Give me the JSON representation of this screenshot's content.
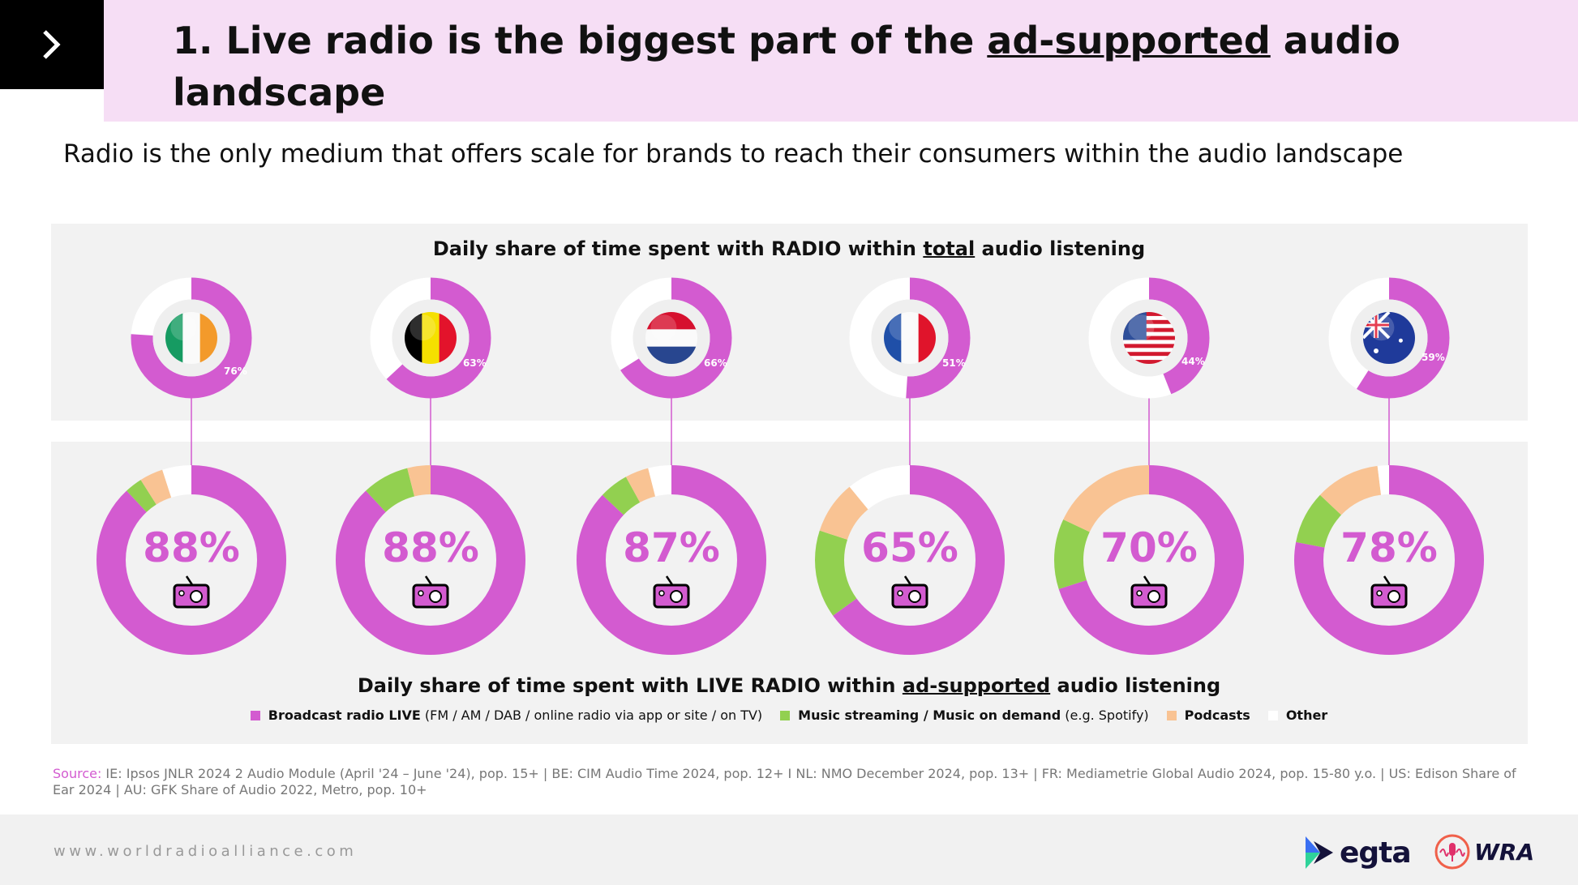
{
  "header": {
    "title_pre": "1. Live radio is the biggest part of the ",
    "title_underlined": "ad-supported",
    "title_post": " audio landscape",
    "subtitle": "Radio is the only medium that offers scale for brands to reach their consumers within the audio landscape"
  },
  "colors": {
    "radio": "#d35bd0",
    "music": "#92d050",
    "podcasts": "#f9c393",
    "other": "#ffffff"
  },
  "chart_data": [
    {
      "type": "pie",
      "title_pre": "Daily share of time spent with RADIO within ",
      "title_underlined": "total",
      "title_post": " audio listening",
      "categories": [
        "IE",
        "BE",
        "NL",
        "FR",
        "US",
        "AU"
      ],
      "values": [
        76,
        63,
        66,
        51,
        44,
        59
      ],
      "labels": [
        "76%",
        "63%",
        "66%",
        "51%",
        "44%",
        "59%"
      ]
    },
    {
      "type": "pie",
      "title_pre": "Daily share of time spent with LIVE RADIO within ",
      "title_underlined": "ad-supported",
      "title_post": " audio listening",
      "categories": [
        "IE",
        "BE",
        "NL",
        "FR",
        "US",
        "AU"
      ],
      "labels": [
        "88%",
        "88%",
        "87%",
        "65%",
        "70%",
        "78%"
      ],
      "series": [
        {
          "name": "Broadcast radio LIVE",
          "values": [
            88,
            88,
            87,
            65,
            70,
            78
          ]
        },
        {
          "name": "Music streaming / Music on demand",
          "values": [
            3,
            8,
            5,
            15,
            12,
            9
          ]
        },
        {
          "name": "Podcasts",
          "values": [
            4,
            4,
            4,
            9,
            18,
            11
          ]
        },
        {
          "name": "Other",
          "values": [
            5,
            0,
            4,
            11,
            0,
            2
          ]
        }
      ],
      "legend": [
        {
          "bold": "Broadcast radio LIVE",
          "rest": " (FM / AM / DAB / online radio via app or site / on TV)"
        },
        {
          "bold": "Music streaming / Music on demand",
          "rest": " (e.g. Spotify)"
        },
        {
          "bold": "Podcasts",
          "rest": ""
        },
        {
          "bold": "Other",
          "rest": ""
        }
      ],
      "legend_placement": "bottom"
    }
  ],
  "source": {
    "label": "Source:",
    "text": " IE: Ipsos JNLR 2024 2 Audio Module (April '24 – June '24), pop. 15+ | BE: CIM Audio Time 2024, pop. 12+ I NL: NMO December 2024, pop. 13+ | FR: Mediametrie Global Audio 2024, pop. 15-80 y.o. |  US: Edison Share of Ear 2024 | AU: GFK Share of Audio 2022, Metro, pop. 10+"
  },
  "footer": {
    "url": "www.worldradioalliance.com",
    "logo1": "egta",
    "logo2": "WRA"
  }
}
